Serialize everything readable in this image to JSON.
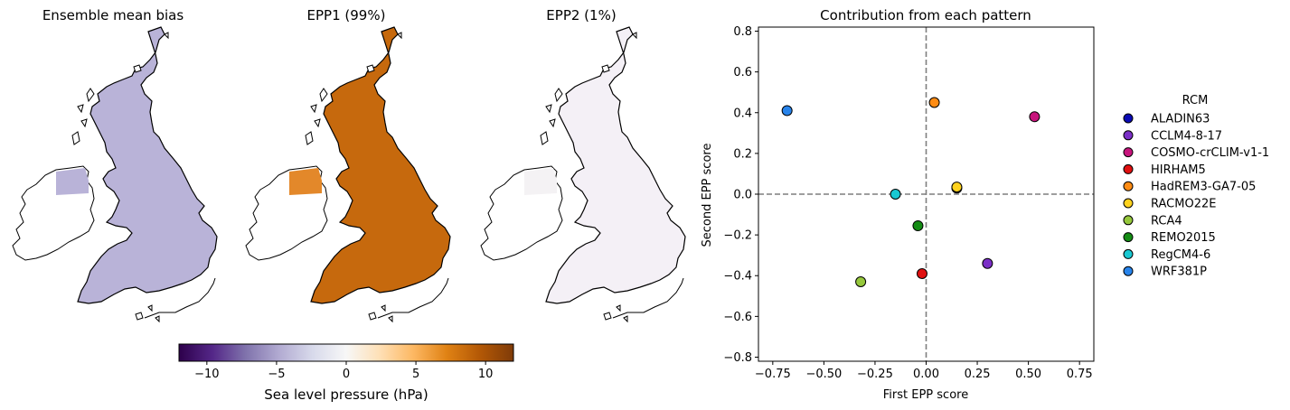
{
  "maps": {
    "titles": [
      "Ensemble mean bias",
      "EPP1 (99%)",
      "EPP2 (1%)"
    ],
    "fills": [
      "#b9b3d8",
      "#c6690d",
      "#f4f0f6"
    ],
    "ireland_fills": [
      "#b9b3d8",
      "#e3882a",
      "#f4f2f4"
    ]
  },
  "colorbar": {
    "label": "Sea level pressure (hPa)",
    "range": [
      -12,
      12
    ],
    "tick_labels": [
      "−10",
      "−5",
      "0",
      "5",
      "10"
    ],
    "tick_values": [
      -10,
      -5,
      0,
      5,
      10
    ],
    "colormap": "PuOr_r",
    "colors": [
      "#2d004b",
      "#542788",
      "#8073ac",
      "#b2abd2",
      "#d8daeb",
      "#f7f7f7",
      "#fee0b6",
      "#fdb863",
      "#e08214",
      "#b35806",
      "#7f3b08"
    ]
  },
  "chart_data": {
    "type": "scatter",
    "title": "Contribution from each pattern",
    "xlabel": "First EPP score",
    "ylabel": "Second EPP score",
    "xlim": [
      -0.82,
      0.82
    ],
    "ylim": [
      -0.82,
      0.82
    ],
    "xticks": [
      -0.75,
      -0.5,
      -0.25,
      0.0,
      0.25,
      0.5,
      0.75
    ],
    "xtick_labels": [
      "−0.75",
      "−0.50",
      "−0.25",
      "0.00",
      "0.25",
      "0.50",
      "0.75"
    ],
    "yticks": [
      -0.8,
      -0.6,
      -0.4,
      -0.2,
      0.0,
      0.2,
      0.4,
      0.6,
      0.8
    ],
    "ytick_labels": [
      "−0.8",
      "−0.6",
      "−0.4",
      "−0.2",
      "0.0",
      "0.2",
      "0.4",
      "0.6",
      "0.8"
    ],
    "reference_lines": {
      "x": 0,
      "y": 0,
      "style": "dashed"
    },
    "legend_title": "RCM",
    "legend_position": "right",
    "series": [
      {
        "name": "ALADIN63",
        "color": "#0a0ab4",
        "x": 0.15,
        "y": 0.03
      },
      {
        "name": "CCLM4-8-17",
        "color": "#7b2fc7",
        "x": 0.3,
        "y": -0.34
      },
      {
        "name": "COSMO-crCLIM-v1-1",
        "color": "#c7147c",
        "x": 0.53,
        "y": 0.38
      },
      {
        "name": "HIRHAM5",
        "color": "#e01010",
        "x": -0.02,
        "y": -0.39
      },
      {
        "name": "HadREM3-GA7-05",
        "color": "#ff8c14",
        "x": 0.04,
        "y": 0.45
      },
      {
        "name": "RACMO22E",
        "color": "#ffd21e",
        "x": 0.15,
        "y": 0.035
      },
      {
        "name": "RCA4",
        "color": "#96c83c",
        "x": -0.32,
        "y": -0.43
      },
      {
        "name": "REMO2015",
        "color": "#148c14",
        "x": -0.04,
        "y": -0.155
      },
      {
        "name": "RegCM4-6",
        "color": "#19c8d2",
        "x": -0.15,
        "y": 0.0
      },
      {
        "name": "WRF381P",
        "color": "#2884eb",
        "x": -0.68,
        "y": 0.41
      }
    ]
  }
}
